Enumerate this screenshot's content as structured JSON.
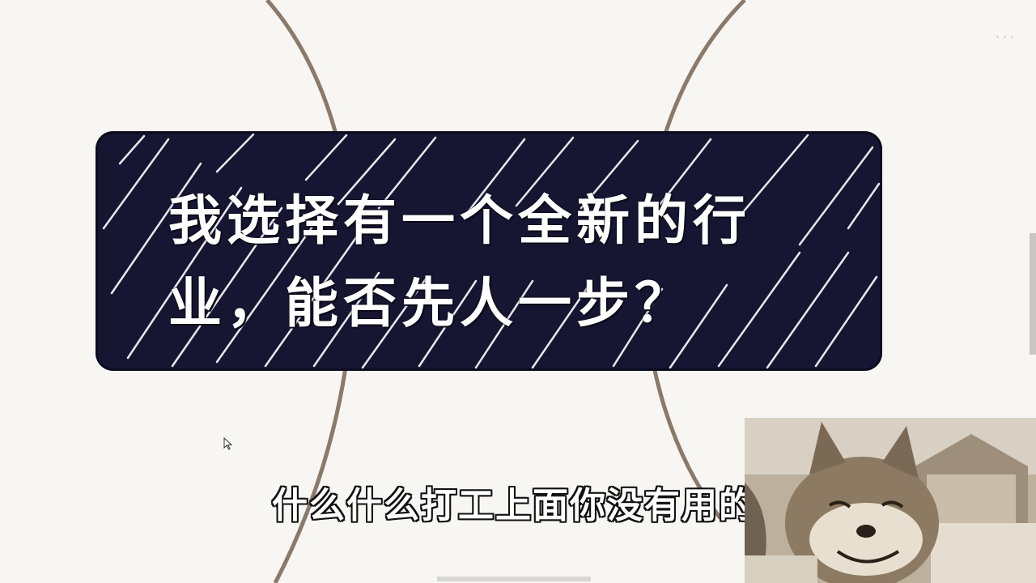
{
  "slide": {
    "title_line1": "我选择有一个全新的行",
    "title_line2": "业，能否先人一步？",
    "watermark": "...",
    "colors": {
      "background": "#f7f6f3",
      "card": "#161633",
      "arc": "#8a7a6a",
      "text": "#ffffff"
    }
  },
  "subtitle": {
    "text": "什么什么打工上面你没有用的"
  },
  "presenter_video": {
    "icon": "shiba-dog-camera-feed"
  }
}
